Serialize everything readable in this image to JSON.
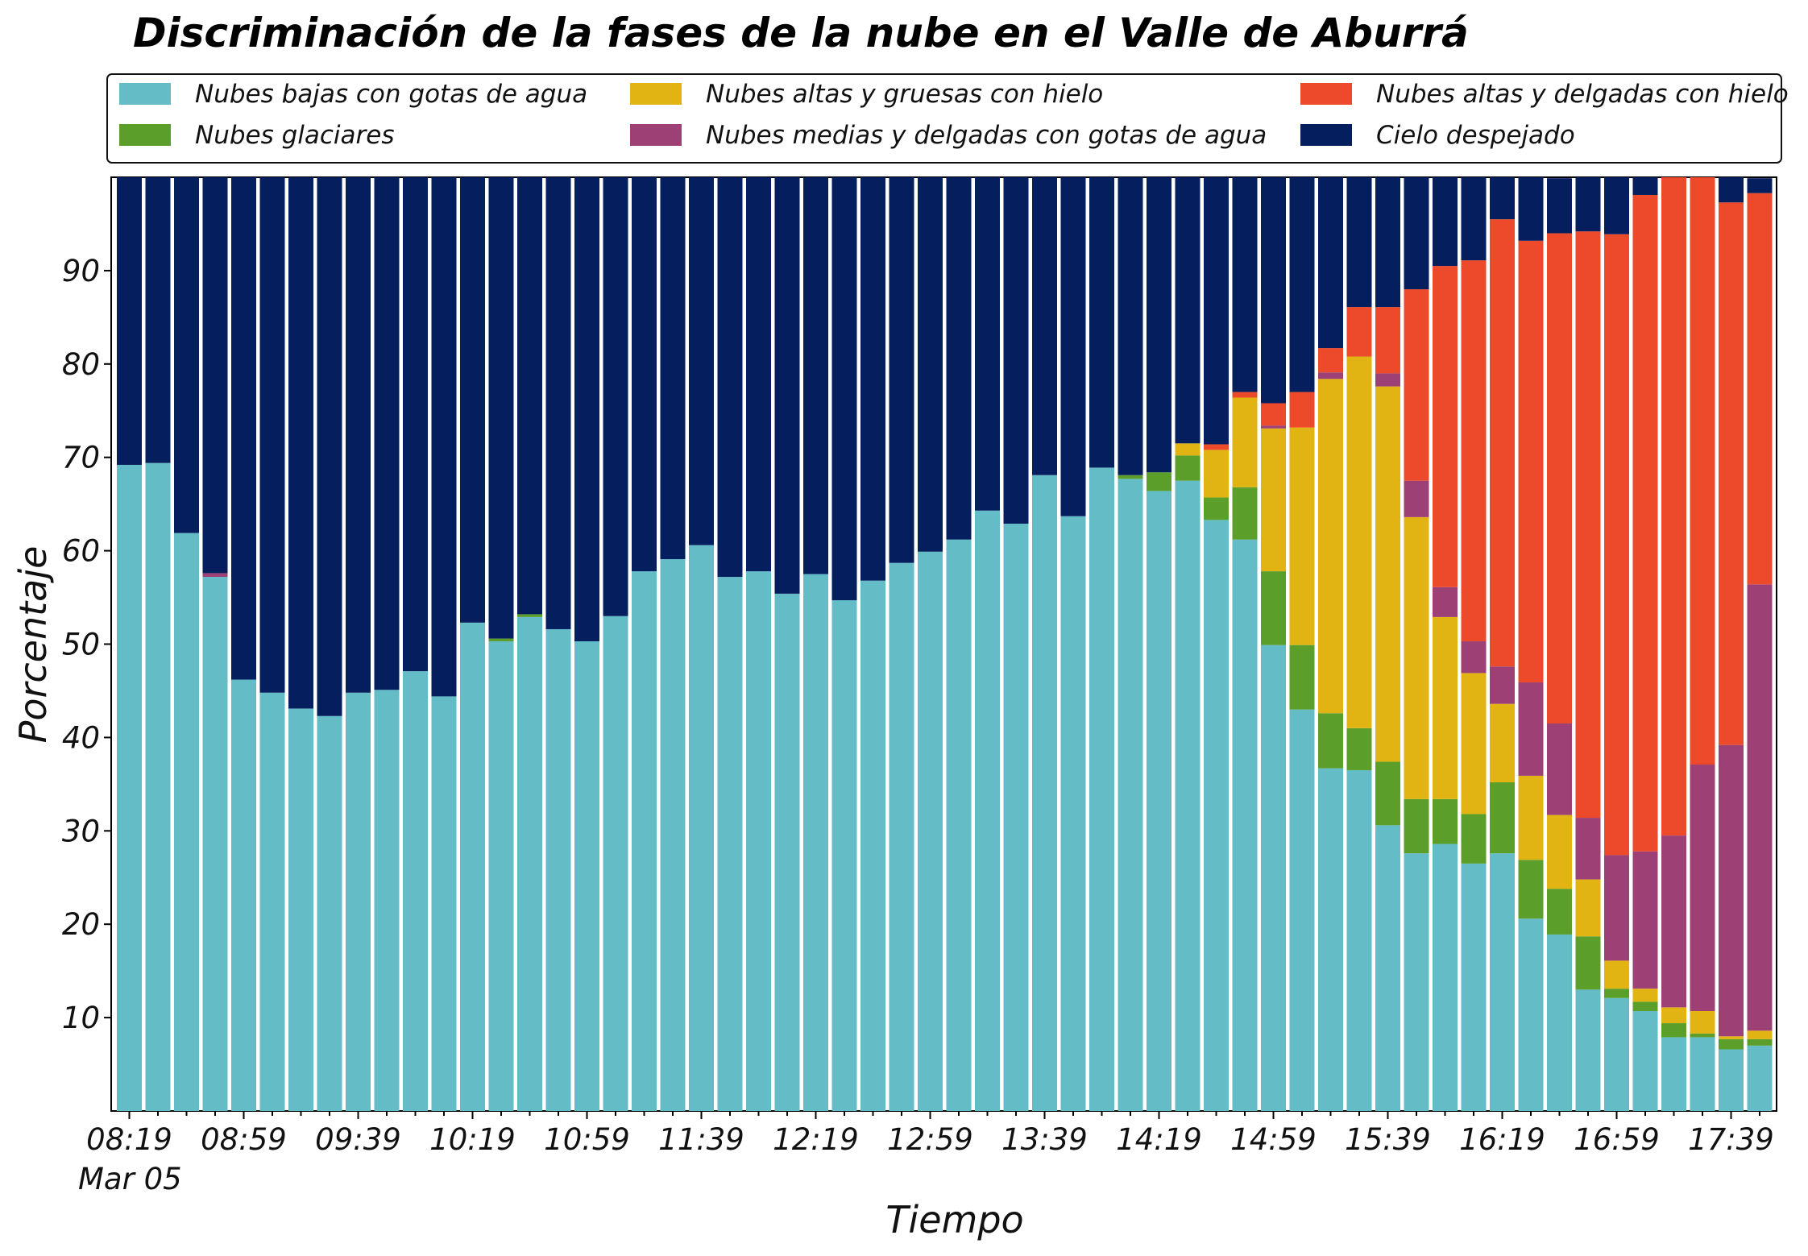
{
  "chart_data": {
    "type": "bar",
    "stacked": true,
    "title": "Discriminación de la fases de la nube en el Valle de Aburrá",
    "xlabel": "Tiempo",
    "ylabel": "Porcentaje",
    "date_label": "Mar 05",
    "ylim": [
      0,
      100
    ],
    "yticks": [
      10,
      20,
      30,
      40,
      50,
      60,
      70,
      80,
      90
    ],
    "legend_location": "top",
    "grid": false,
    "xtick_labels": [
      "08:19",
      "08:59",
      "09:39",
      "10:19",
      "10:59",
      "11:39",
      "12:19",
      "12:59",
      "13:39",
      "14:19",
      "14:59",
      "15:39",
      "16:19",
      "16:59",
      "17:39"
    ],
    "xtick_every": 4,
    "categories": [
      "08:19",
      "08:29",
      "08:39",
      "08:49",
      "08:59",
      "09:09",
      "09:19",
      "09:29",
      "09:39",
      "09:49",
      "09:59",
      "10:09",
      "10:19",
      "10:29",
      "10:39",
      "10:49",
      "10:59",
      "11:09",
      "11:19",
      "11:29",
      "11:39",
      "11:49",
      "11:59",
      "12:09",
      "12:19",
      "12:29",
      "12:39",
      "12:49",
      "12:59",
      "13:09",
      "13:19",
      "13:29",
      "13:39",
      "13:49",
      "13:59",
      "14:09",
      "14:19",
      "14:29",
      "14:39",
      "14:49",
      "14:59",
      "15:09",
      "15:19",
      "15:29",
      "15:39",
      "15:49",
      "15:59",
      "16:09",
      "16:19",
      "16:29",
      "16:39",
      "16:49",
      "16:59",
      "17:09",
      "17:19",
      "17:29",
      "17:39",
      "17:49"
    ],
    "series": [
      {
        "name": "Nubes bajas con gotas de agua",
        "color": "#64bcc7",
        "values": [
          69.2,
          69.4,
          61.9,
          57.2,
          46.2,
          44.8,
          43.1,
          42.3,
          44.8,
          45.1,
          47.1,
          44.4,
          52.3,
          50.3,
          52.9,
          51.6,
          50.3,
          53.0,
          57.8,
          59.1,
          60.6,
          57.2,
          57.8,
          55.4,
          57.5,
          54.7,
          56.8,
          58.7,
          59.9,
          61.2,
          64.3,
          62.9,
          68.1,
          63.7,
          68.9,
          67.7,
          66.4,
          67.5,
          63.3,
          61.2,
          49.9,
          43.0,
          36.7,
          36.5,
          30.6,
          27.6,
          28.6,
          26.5,
          27.6,
          20.6,
          18.9,
          13.0,
          12.1,
          10.7,
          7.9,
          7.9,
          6.6,
          7.0
        ]
      },
      {
        "name": "Nubes glaciares",
        "color": "#5b9e2a",
        "values": [
          0,
          0,
          0,
          0,
          0,
          0,
          0,
          0,
          0,
          0,
          0,
          0,
          0,
          0.3,
          0.3,
          0,
          0,
          0,
          0,
          0,
          0,
          0,
          0,
          0,
          0,
          0,
          0,
          0,
          0,
          0,
          0,
          0,
          0,
          0,
          0,
          0.4,
          2.0,
          2.7,
          2.4,
          5.6,
          7.9,
          6.9,
          5.9,
          4.5,
          6.8,
          5.8,
          4.8,
          5.3,
          7.6,
          6.3,
          4.9,
          5.7,
          1.0,
          1.0,
          1.5,
          0.4,
          1.1,
          0.7
        ]
      },
      {
        "name": "Nubes altas y gruesas con hielo",
        "color": "#e2b413",
        "values": [
          0,
          0,
          0,
          0,
          0,
          0,
          0,
          0,
          0,
          0,
          0,
          0,
          0,
          0,
          0,
          0,
          0,
          0,
          0,
          0,
          0,
          0,
          0,
          0,
          0,
          0,
          0,
          0,
          0,
          0,
          0,
          0,
          0,
          0,
          0,
          0,
          0,
          1.3,
          5.1,
          9.6,
          15.3,
          23.3,
          35.8,
          39.8,
          40.2,
          30.2,
          19.5,
          15.1,
          8.4,
          9.0,
          7.9,
          6.1,
          3.0,
          1.4,
          1.7,
          2.4,
          0.3,
          0.9
        ]
      },
      {
        "name": "Nubes medias y delgadas con gotas de agua",
        "color": "#9c4075",
        "values": [
          0,
          0,
          0,
          0.4,
          0,
          0,
          0,
          0,
          0,
          0,
          0,
          0,
          0,
          0,
          0,
          0,
          0,
          0,
          0,
          0,
          0,
          0,
          0,
          0,
          0,
          0,
          0,
          0,
          0,
          0,
          0,
          0,
          0,
          0,
          0,
          0,
          0,
          0,
          0,
          0,
          0.3,
          0,
          0.7,
          0,
          1.4,
          3.9,
          3.2,
          3.4,
          4.0,
          10.0,
          9.8,
          6.6,
          11.3,
          14.7,
          18.4,
          26.4,
          31.2,
          47.8
        ]
      },
      {
        "name": "Nubes altas y delgadas con hielo",
        "color": "#ec4a2a",
        "values": [
          0,
          0,
          0,
          0,
          0,
          0,
          0,
          0,
          0,
          0,
          0,
          0,
          0,
          0,
          0,
          0,
          0,
          0,
          0,
          0,
          0,
          0,
          0,
          0,
          0,
          0,
          0,
          0,
          0,
          0,
          0,
          0,
          0,
          0,
          0,
          0,
          0,
          0,
          0.6,
          0.6,
          2.4,
          3.8,
          2.6,
          5.3,
          7.1,
          20.5,
          34.4,
          40.8,
          47.9,
          47.3,
          52.5,
          62.8,
          66.5,
          70.3,
          70.5,
          62.9,
          58.1,
          41.9
        ]
      },
      {
        "name": "Cielo despejado",
        "color": "#041e5e",
        "values": [
          30.8,
          30.6,
          38.1,
          42.4,
          53.8,
          55.2,
          56.9,
          57.7,
          55.2,
          54.9,
          52.9,
          55.6,
          47.7,
          49.4,
          46.8,
          48.4,
          49.7,
          47.0,
          42.2,
          40.9,
          39.4,
          42.8,
          42.2,
          44.6,
          42.5,
          45.3,
          43.2,
          41.3,
          40.1,
          38.8,
          35.7,
          37.1,
          31.9,
          36.3,
          31.1,
          31.9,
          31.6,
          28.5,
          28.6,
          23.0,
          24.2,
          23.0,
          18.3,
          13.9,
          13.9,
          12.0,
          9.5,
          8.9,
          4.5,
          6.8,
          5.9,
          5.8,
          6.1,
          1.9,
          0.5,
          0,
          2.7,
          1.6
        ]
      }
    ]
  }
}
